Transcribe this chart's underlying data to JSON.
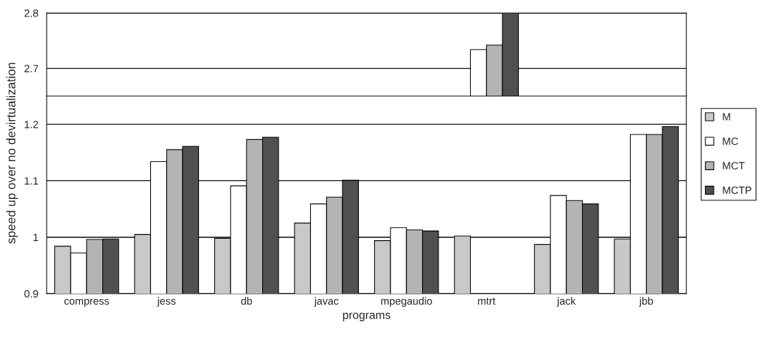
{
  "chart_data": [
    {
      "type": "bar",
      "categories": [
        null,
        null,
        null,
        null,
        null,
        null,
        null,
        null
      ],
      "ylim": [
        2.65,
        2.8
      ],
      "yticks": [
        2.7,
        2.8
      ],
      "grid": "y",
      "tick_labels": "y",
      "series": [
        {
          "color": "#c8c8c8",
          "values": [
            null,
            null,
            null,
            null,
            null,
            null,
            null,
            null
          ]
        },
        {
          "color": "#ffffff",
          "values": [
            null,
            null,
            null,
            null,
            null,
            2.734,
            null,
            null
          ]
        },
        {
          "color": "#b4b4b4",
          "values": [
            null,
            null,
            null,
            null,
            null,
            2.742,
            null,
            null
          ]
        },
        {
          "color": "#505050",
          "values": [
            null,
            null,
            null,
            null,
            null,
            2.8,
            null,
            null
          ]
        }
      ]
    },
    {
      "type": "bar",
      "categories": [
        "compress",
        "jess",
        "db",
        "javac",
        "mpegaudio",
        "mtrt",
        "jack",
        "jbb"
      ],
      "xlabel": "programs",
      "ylabel": "speed up over no devirtualization",
      "ylim": [
        0.9,
        1.25
      ],
      "yticks": [
        0.9,
        1,
        1.1,
        1.2
      ],
      "grid": "y",
      "legend": "right",
      "series": [
        {
          "name": "M",
          "color": "#c8c8c8",
          "values": [
            0.984,
            1.005,
            0.998,
            1.025,
            0.994,
            1.002,
            0.987,
            0.997
          ]
        },
        {
          "name": "MC",
          "color": "#ffffff",
          "values": [
            0.972,
            1.134,
            1.091,
            1.059,
            1.017,
            null,
            1.074,
            1.182
          ]
        },
        {
          "name": "MCT",
          "color": "#b4b4b4",
          "values": [
            0.996,
            1.155,
            1.173,
            1.071,
            1.013,
            null,
            1.065,
            1.182
          ]
        },
        {
          "name": "MCTP",
          "color": "#505050",
          "values": [
            0.997,
            1.161,
            1.177,
            1.101,
            1.011,
            null,
            1.059,
            1.196
          ]
        }
      ]
    }
  ]
}
